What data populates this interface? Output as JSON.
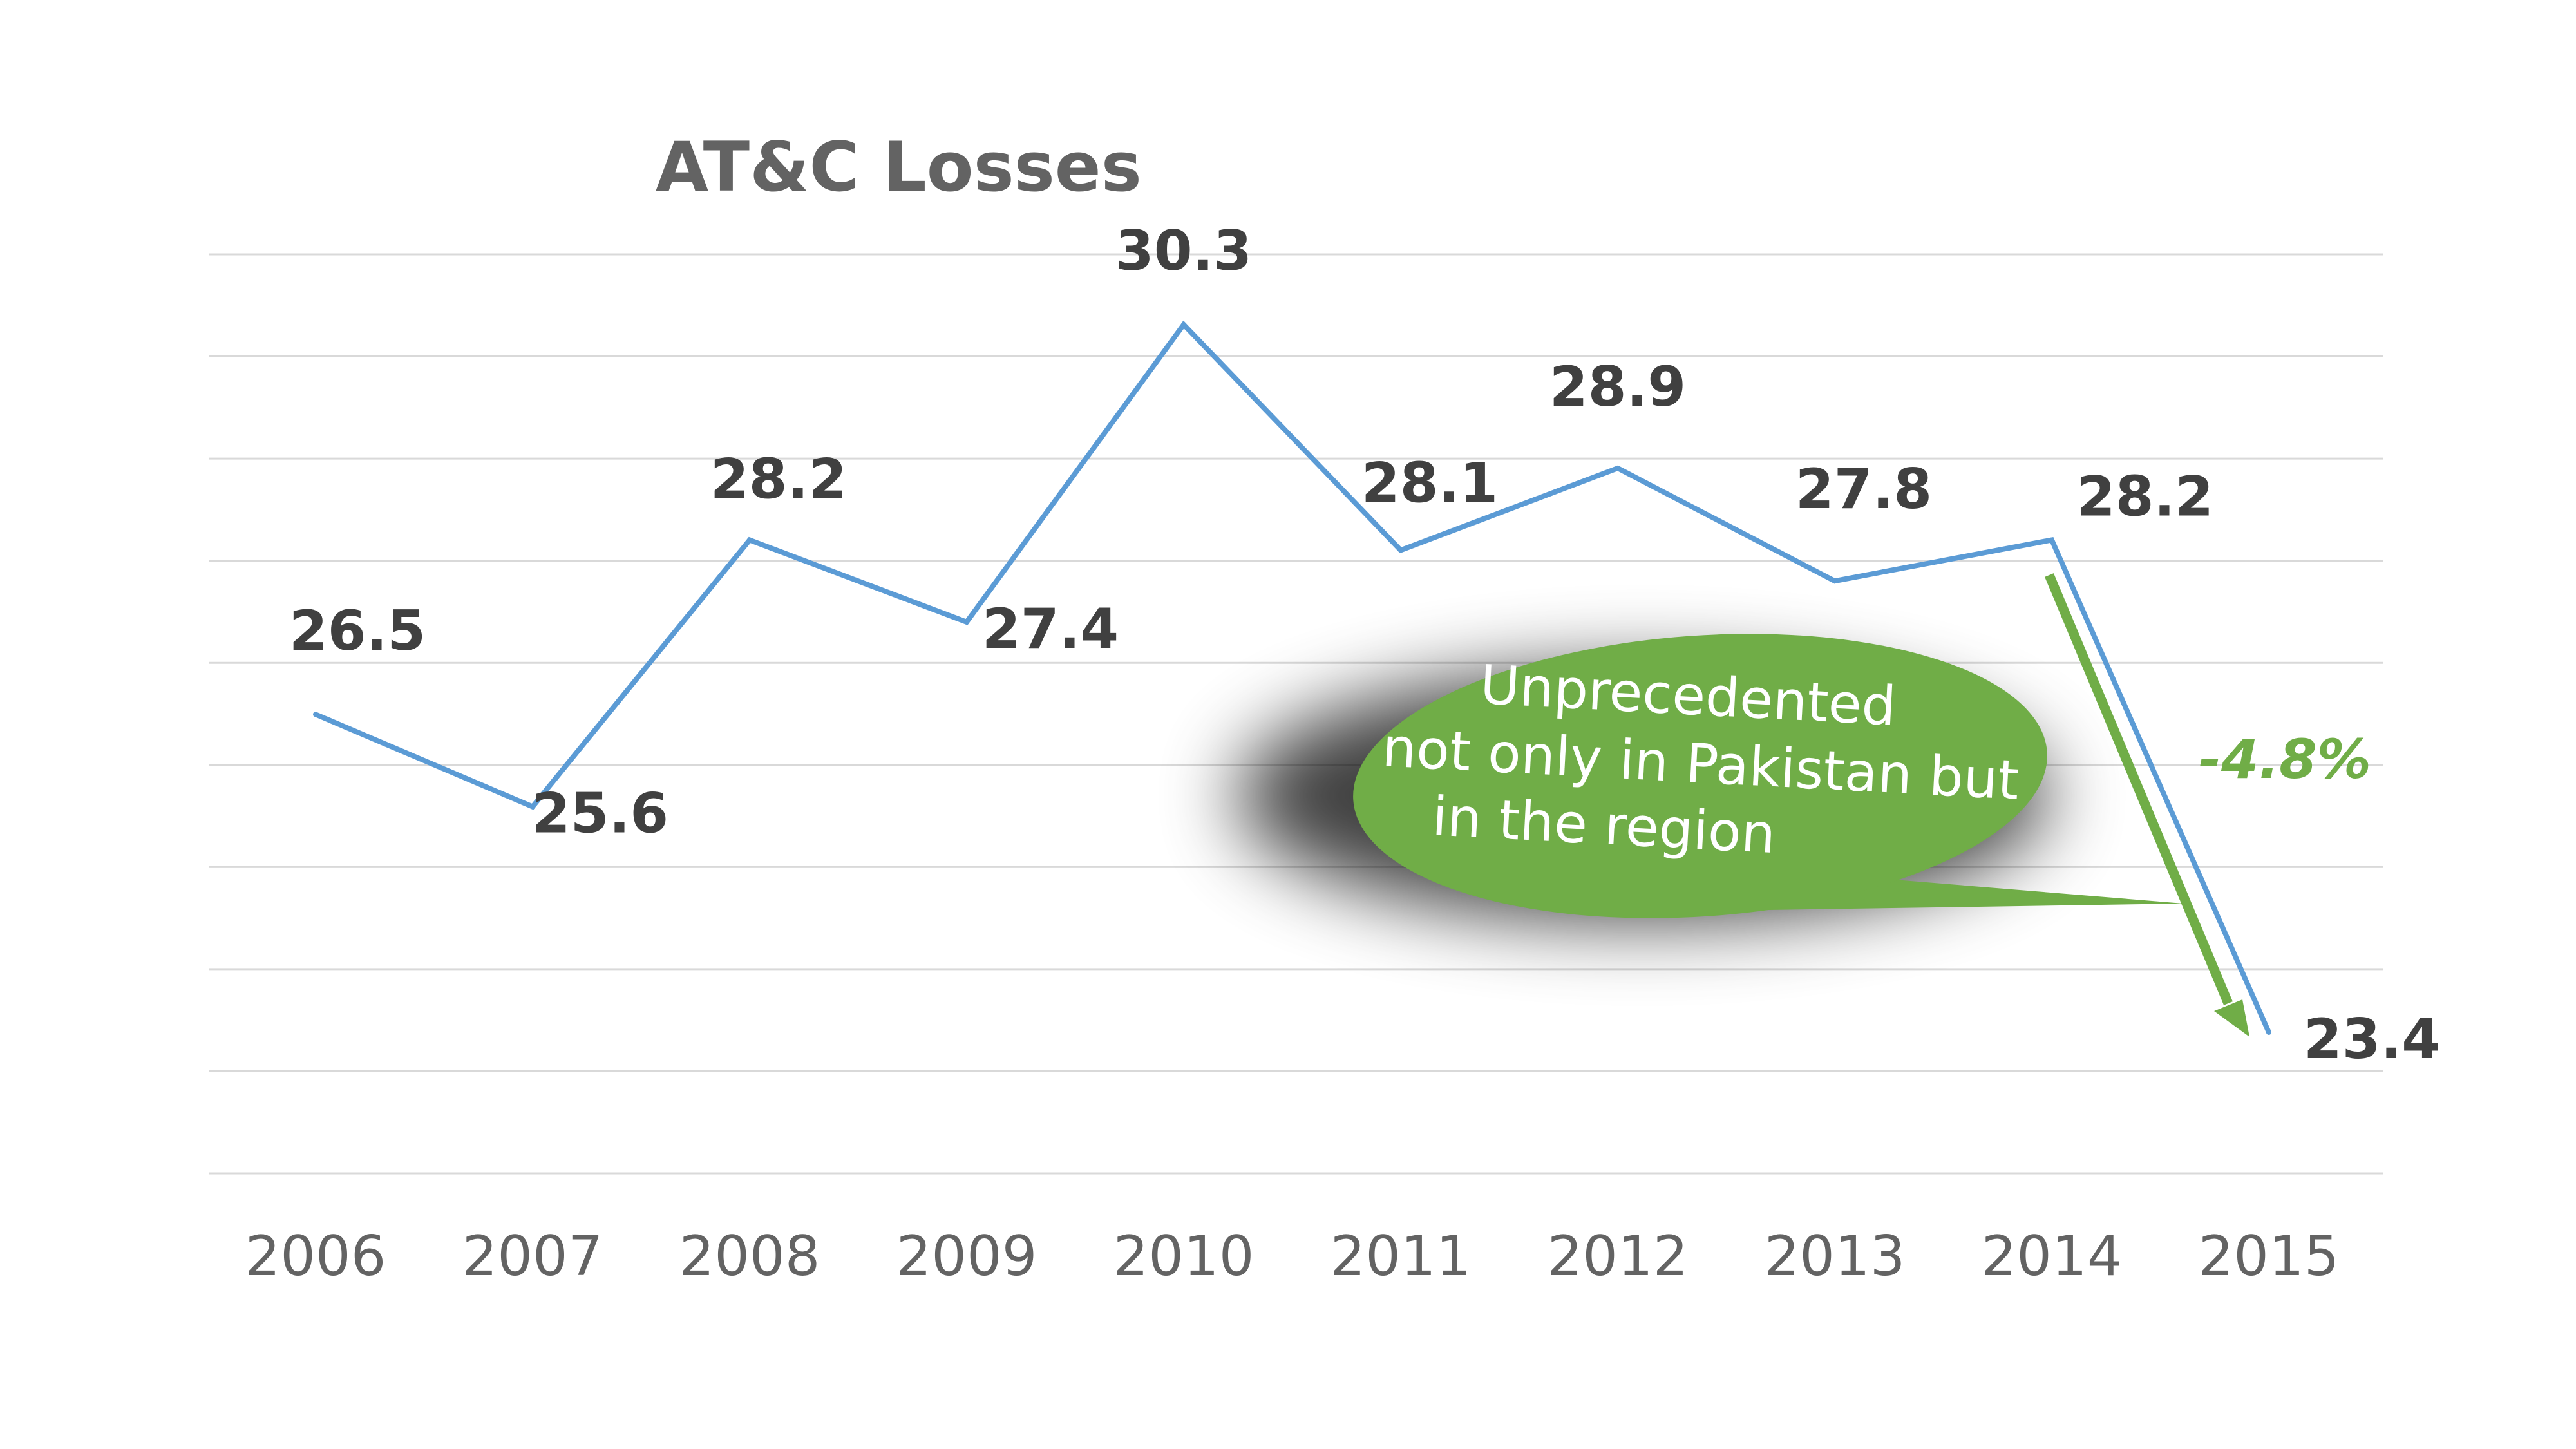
{
  "chart_data": {
    "type": "line",
    "title": "AT&C Losses",
    "xlabel": "",
    "ylabel": "",
    "categories": [
      "2006",
      "2007",
      "2008",
      "2009",
      "2010",
      "2011",
      "2012",
      "2013",
      "2014",
      "2015"
    ],
    "series": [
      {
        "values": [
          26.5,
          25.6,
          28.2,
          27.4,
          30.3,
          28.1,
          28.9,
          27.8,
          28.2,
          23.4
        ],
        "color": "#5b9bd5"
      }
    ],
    "data_labels": [
      "26.5",
      "25.6",
      "28.2",
      "27.4",
      "30.3",
      "28.1",
      "28.9",
      "27.8",
      "28.2",
      "23.4"
    ],
    "grid": true,
    "legend": "none"
  },
  "annotations": {
    "callout_lines": [
      "Unprecedented",
      "not only in Pakistan but",
      "in the region"
    ],
    "callout_color": "#70ad47",
    "change_label": "-4.8%",
    "change_color": "#70ad47"
  }
}
